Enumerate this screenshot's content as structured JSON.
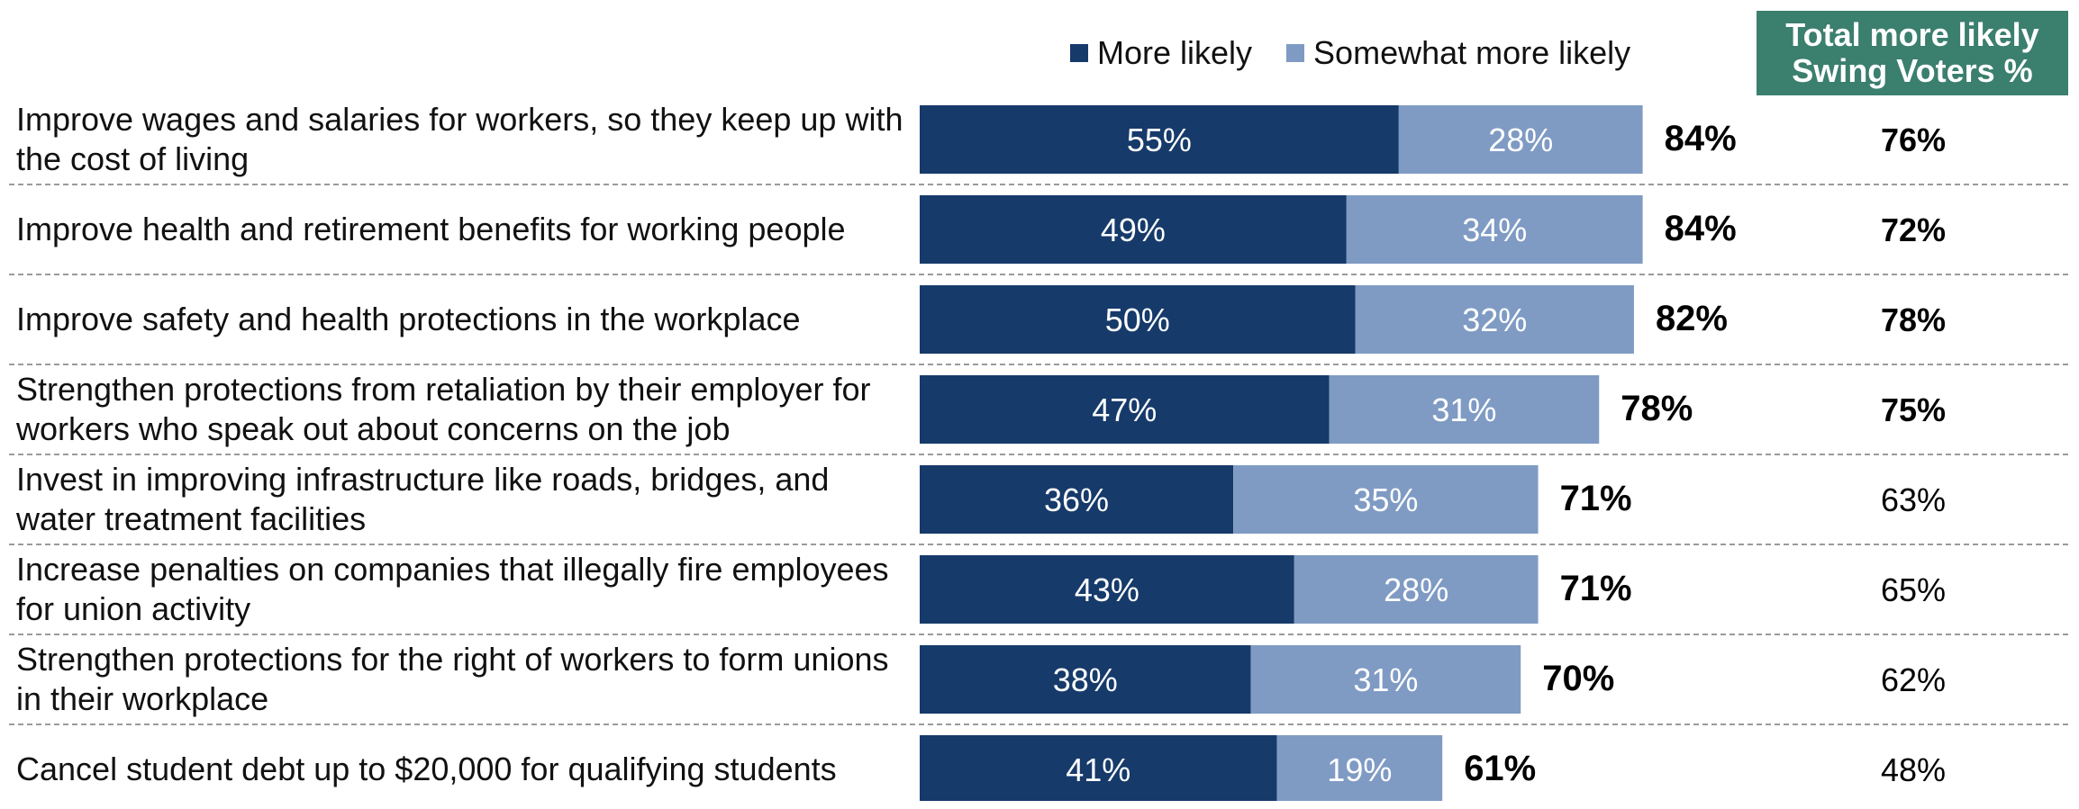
{
  "legend": {
    "more_likely": "More likely",
    "somewhat_more_likely": "Somewhat more likely"
  },
  "swing_header": {
    "line1": "Total more likely",
    "line2": "Swing Voters %"
  },
  "colors": {
    "more_likely": "#163a6a",
    "somewhat_more_likely": "#7f9bc4",
    "swing_header_bg": "#3b7f6e"
  },
  "chart_data": {
    "type": "bar",
    "orientation": "horizontal",
    "stacked": true,
    "categories": [
      "Improve wages and salaries for workers, so they keep up with the cost of living",
      "Improve health and retirement benefits for working people",
      "Improve safety and health protections in the workplace",
      "Strengthen protections from retaliation by their employer for workers who speak out about concerns on the job",
      "Invest in improving infrastructure like roads, bridges, and water treatment facilities",
      "Increase penalties on companies that illegally fire employees for union activity",
      "Strengthen protections for the right of workers to form unions in their workplace",
      "Cancel student debt up to $20,000 for qualifying students"
    ],
    "series": [
      {
        "name": "More likely",
        "values": [
          55,
          49,
          50,
          47,
          36,
          43,
          38,
          41
        ]
      },
      {
        "name": "Somewhat more likely",
        "values": [
          28,
          34,
          32,
          31,
          35,
          28,
          31,
          19
        ]
      }
    ],
    "total_labels": [
      "84%",
      "84%",
      "82%",
      "78%",
      "71%",
      "71%",
      "70%",
      "61%"
    ],
    "swing_voters": [
      "76%",
      "72%",
      "78%",
      "75%",
      "63%",
      "65%",
      "62%",
      "48%"
    ],
    "swing_bold": [
      true,
      true,
      true,
      true,
      false,
      false,
      false,
      false
    ],
    "grid": false,
    "legend_position": "top"
  }
}
